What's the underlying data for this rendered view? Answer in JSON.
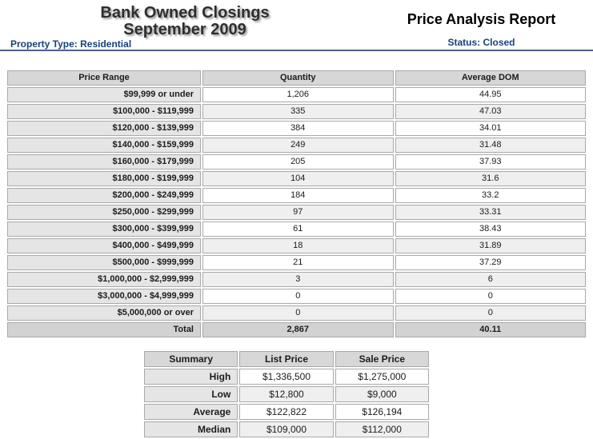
{
  "header": {
    "title_line1": "Bank Owned Closings",
    "title_line2": "September 2009",
    "report_title": "Price Analysis Report",
    "property_type": "Property Type: Residential",
    "status": "Status: Closed"
  },
  "price_table": {
    "columns": [
      "Price Range",
      "Quantity",
      "Average DOM"
    ],
    "rows": [
      [
        "$99,999 or under",
        "1,206",
        "44.95"
      ],
      [
        "$100,000 - $119,999",
        "335",
        "47.03"
      ],
      [
        "$120,000 - $139,999",
        "384",
        "34.01"
      ],
      [
        "$140,000 - $159,999",
        "249",
        "31.48"
      ],
      [
        "$160,000 - $179,999",
        "205",
        "37.93"
      ],
      [
        "$180,000 - $199,999",
        "104",
        "31.6"
      ],
      [
        "$200,000 - $249,999",
        "184",
        "33.2"
      ],
      [
        "$250,000 - $299,999",
        "97",
        "33.31"
      ],
      [
        "$300,000 - $399,999",
        "61",
        "38.43"
      ],
      [
        "$400,000 - $499,999",
        "18",
        "31.89"
      ],
      [
        "$500,000 - $999,999",
        "21",
        "37.29"
      ],
      [
        "$1,000,000 - $2,999,999",
        "3",
        "6"
      ],
      [
        "$3,000,000 - $4,999,999",
        "0",
        "0"
      ],
      [
        "$5,000,000 or over",
        "0",
        "0"
      ]
    ],
    "total": [
      "Total",
      "2,867",
      "40.11"
    ]
  },
  "summary_table": {
    "columns": [
      "Summary",
      "List Price",
      "Sale Price"
    ],
    "rows": [
      [
        "High",
        "$1,336,500",
        "$1,275,000"
      ],
      [
        "Low",
        "$12,800",
        "$9,000"
      ],
      [
        "Average",
        "$122,822",
        "$126,194"
      ],
      [
        "Median",
        "$109,000",
        "$112,000"
      ]
    ]
  },
  "colors": {
    "accent_navy": "#17407e",
    "header_divider": "#50608a",
    "table_header_bg": "#d7d7d7",
    "label_cell_bg": "#e5e5e5",
    "alt_row_bg": "#efefef",
    "total_row_bg": "#d2d2d2",
    "cell_border": "#a9a9a9"
  }
}
